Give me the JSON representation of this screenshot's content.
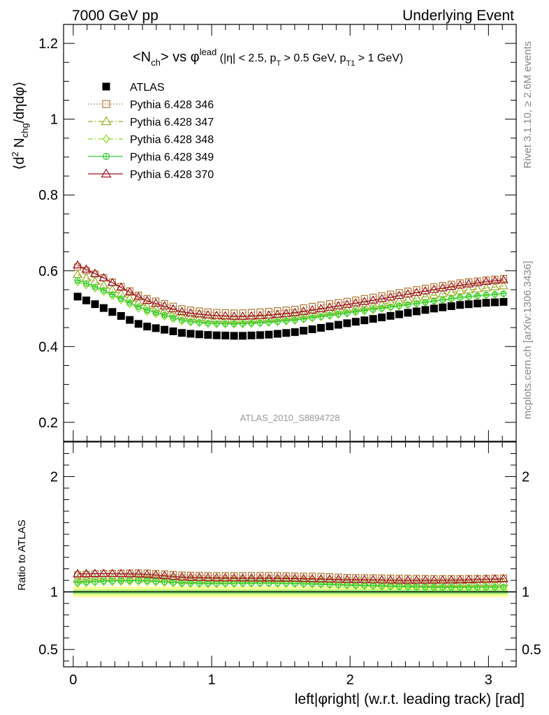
{
  "header": {
    "left": "7000 GeV pp",
    "right": "Underlying Event"
  },
  "title_parts": {
    "open": "<N",
    "sub_ch": "ch",
    "mid": "> vs ",
    "phi": "φ",
    "sup_lead": "lead",
    "cuts_a": " (|η| < 2.5, p",
    "sub_T": "T",
    "cuts_b": " > 0.5 GeV, p",
    "sub_T1": "T1",
    "cuts_c": " > 1 GeV)"
  },
  "ylabel_parts": {
    "a": "⟨d",
    "sup2": "2",
    "b": " N",
    "sub_chg": "chg",
    "c": "/dηdφ⟩"
  },
  "ratio_ylabel": "Ratio to ATLAS",
  "xlabel": "left|φright| (w.r.t. leading track) [rad]",
  "watermark": "ATLAS_2010_S8894728",
  "side_text_top": "Rivet 3.1.10, ≥ 2.6M events",
  "side_text_bottom": "mcplots.cern.ch [arXiv:1306.3436]",
  "chart_data": {
    "type": "scatter",
    "x_range": [
      -0.07,
      3.2
    ],
    "main_ylim": [
      0.15,
      1.25
    ],
    "ratio_ylim": [
      0.35,
      2.3
    ],
    "x_ticks": [
      "0",
      "1",
      "2",
      "3"
    ],
    "main_y_ticks": [
      "0.2",
      "0.4",
      "0.6",
      "0.8",
      "1",
      "1.2"
    ],
    "ratio_y_ticks": [
      "0.5",
      "1",
      "2"
    ],
    "legend_position": "top-left",
    "band_colors": {
      "outer": "#ffff99",
      "inner": "#99ee77"
    },
    "series": [
      {
        "name": "ATLAS",
        "color": "#000000",
        "marker": "square-filled",
        "line": "none",
        "anchors": [
          [
            0.03,
            0.532
          ],
          [
            0.2,
            0.505
          ],
          [
            0.5,
            0.455
          ],
          [
            0.8,
            0.435
          ],
          [
            1.0,
            0.43
          ],
          [
            1.2,
            0.428
          ],
          [
            1.4,
            0.431
          ],
          [
            1.6,
            0.438
          ],
          [
            1.8,
            0.45
          ],
          [
            2.0,
            0.463
          ],
          [
            2.2,
            0.475
          ],
          [
            2.4,
            0.488
          ],
          [
            2.6,
            0.5
          ],
          [
            2.8,
            0.51
          ],
          [
            3.0,
            0.516
          ],
          [
            3.12,
            0.518
          ]
        ]
      },
      {
        "name": "Pythia 6.428 346",
        "color": "#b07830",
        "marker": "square-open",
        "line": "dotted",
        "anchors": [
          [
            0.03,
            0.61
          ],
          [
            0.2,
            0.585
          ],
          [
            0.5,
            0.53
          ],
          [
            0.8,
            0.498
          ],
          [
            1.0,
            0.49
          ],
          [
            1.2,
            0.488
          ],
          [
            1.4,
            0.492
          ],
          [
            1.6,
            0.498
          ],
          [
            1.8,
            0.51
          ],
          [
            2.0,
            0.52
          ],
          [
            2.2,
            0.532
          ],
          [
            2.4,
            0.545
          ],
          [
            2.6,
            0.557
          ],
          [
            2.8,
            0.568
          ],
          [
            3.0,
            0.576
          ],
          [
            3.12,
            0.58
          ]
        ]
      },
      {
        "name": "Pythia 6.428 347",
        "color": "#99aa22",
        "marker": "triangle-open",
        "line": "dashdot",
        "anchors": [
          [
            0.03,
            0.59
          ],
          [
            0.2,
            0.565
          ],
          [
            0.5,
            0.51
          ],
          [
            0.8,
            0.48
          ],
          [
            1.0,
            0.472
          ],
          [
            1.2,
            0.47
          ],
          [
            1.4,
            0.474
          ],
          [
            1.6,
            0.48
          ],
          [
            1.8,
            0.49
          ],
          [
            2.0,
            0.5
          ],
          [
            2.2,
            0.51
          ],
          [
            2.4,
            0.522
          ],
          [
            2.6,
            0.535
          ],
          [
            2.8,
            0.547
          ],
          [
            3.0,
            0.555
          ],
          [
            3.12,
            0.56
          ]
        ]
      },
      {
        "name": "Pythia 6.428 348",
        "color": "#88dd22",
        "marker": "diamond-open",
        "line": "dashdot",
        "anchors": [
          [
            0.03,
            0.57
          ],
          [
            0.2,
            0.548
          ],
          [
            0.5,
            0.495
          ],
          [
            0.8,
            0.465
          ],
          [
            1.0,
            0.459
          ],
          [
            1.2,
            0.458
          ],
          [
            1.4,
            0.462
          ],
          [
            1.6,
            0.468
          ],
          [
            1.8,
            0.478
          ],
          [
            2.0,
            0.488
          ],
          [
            2.2,
            0.498
          ],
          [
            2.4,
            0.508
          ],
          [
            2.6,
            0.518
          ],
          [
            2.8,
            0.528
          ],
          [
            3.0,
            0.535
          ],
          [
            3.12,
            0.538
          ]
        ]
      },
      {
        "name": "Pythia 6.428 349",
        "color": "#33cc33",
        "marker": "circle-cross",
        "line": "solid",
        "anchors": [
          [
            0.03,
            0.575
          ],
          [
            0.2,
            0.552
          ],
          [
            0.5,
            0.5
          ],
          [
            0.8,
            0.468
          ],
          [
            1.0,
            0.461
          ],
          [
            1.2,
            0.46
          ],
          [
            1.4,
            0.464
          ],
          [
            1.6,
            0.47
          ],
          [
            1.8,
            0.48
          ],
          [
            2.0,
            0.49
          ],
          [
            2.2,
            0.5
          ],
          [
            2.4,
            0.51
          ],
          [
            2.6,
            0.52
          ],
          [
            2.8,
            0.53
          ],
          [
            3.0,
            0.537
          ],
          [
            3.12,
            0.54
          ]
        ]
      },
      {
        "name": "Pythia 6.428 370",
        "color": "#a01020",
        "marker": "triangle-open",
        "line": "solid",
        "anchors": [
          [
            0.03,
            0.615
          ],
          [
            0.2,
            0.585
          ],
          [
            0.5,
            0.525
          ],
          [
            0.8,
            0.49
          ],
          [
            1.0,
            0.482
          ],
          [
            1.2,
            0.479
          ],
          [
            1.4,
            0.482
          ],
          [
            1.6,
            0.489
          ],
          [
            1.8,
            0.5
          ],
          [
            2.0,
            0.512
          ],
          [
            2.2,
            0.524
          ],
          [
            2.4,
            0.537
          ],
          [
            2.6,
            0.55
          ],
          [
            2.8,
            0.562
          ],
          [
            3.0,
            0.572
          ],
          [
            3.12,
            0.576
          ]
        ]
      }
    ]
  }
}
